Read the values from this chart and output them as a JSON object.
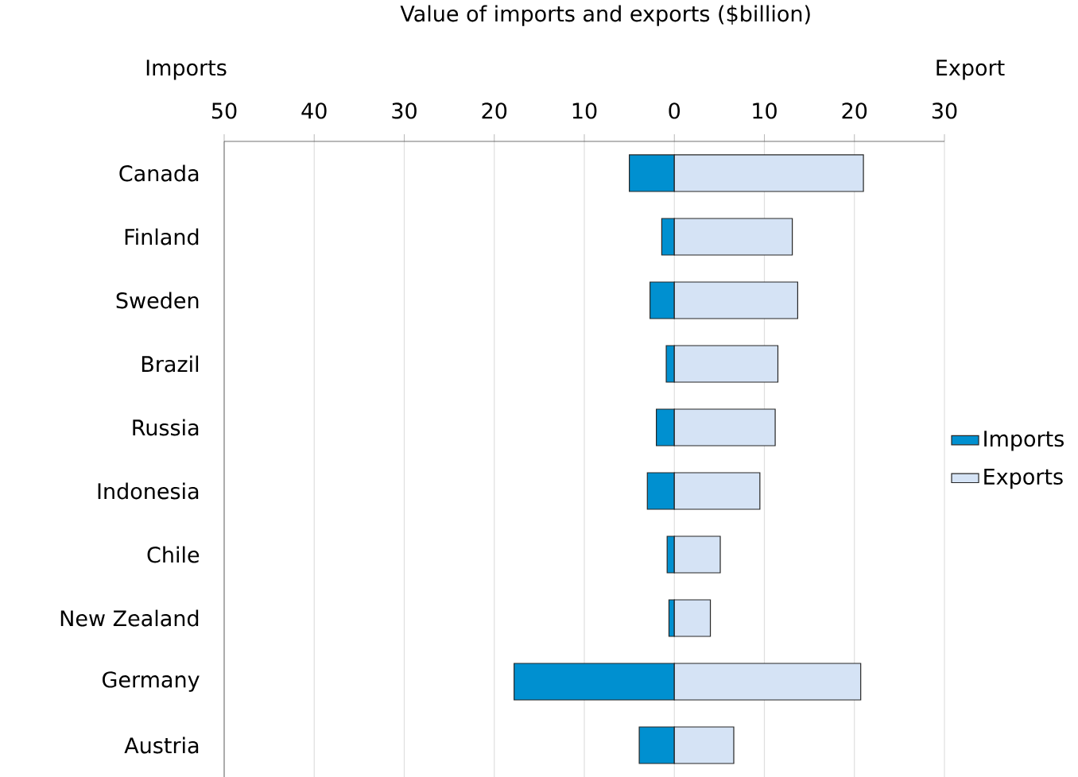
{
  "chart_data": {
    "type": "bar",
    "orientation": "horizontal",
    "stacked": true,
    "title": "Value of imports and exports ($billion)",
    "annotations": [
      "Imports",
      "Export"
    ],
    "categories": [
      "Canada",
      "Finland",
      "Sweden",
      "Brazil",
      "Russia",
      "Indonesia",
      "Chile",
      "New Zealand",
      "Germany",
      "Austria"
    ],
    "series": [
      {
        "name": "Imports",
        "color": "#0090d0",
        "values": [
          -5.0,
          -1.4,
          -2.7,
          -0.9,
          -2.0,
          -3.0,
          -0.8,
          -0.6,
          -17.8,
          -3.9
        ]
      },
      {
        "name": "Exports",
        "color": "#d5e3f5",
        "values": [
          21.0,
          13.1,
          13.7,
          11.5,
          11.2,
          9.5,
          5.1,
          4.0,
          20.7,
          6.6
        ]
      }
    ],
    "xlim": [
      -50,
      30
    ],
    "xticks": [
      {
        "value": -50,
        "label": "50"
      },
      {
        "value": -40,
        "label": "40"
      },
      {
        "value": -30,
        "label": "30"
      },
      {
        "value": -20,
        "label": "20"
      },
      {
        "value": -10,
        "label": "10"
      },
      0,
      10,
      20,
      30
    ],
    "grid": "x",
    "legend": "right"
  }
}
